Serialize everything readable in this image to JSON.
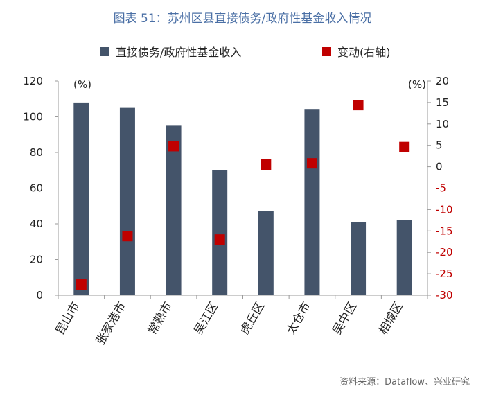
{
  "chart_data": {
    "type": "bar",
    "title": "图表 51：苏州区县直接债务/政府性基金收入情况",
    "categories": [
      "昆山市",
      "张家港市",
      "常熟市",
      "吴江区",
      "虎丘区",
      "太仓市",
      "吴中区",
      "相城区"
    ],
    "series": [
      {
        "name": "直接债务/政府性基金收入",
        "type": "bar",
        "axis": "left",
        "color": "#44546a",
        "values": [
          108,
          105,
          95,
          70,
          47,
          104,
          41,
          42
        ]
      },
      {
        "name": "变动(右轴)",
        "type": "scatter",
        "axis": "right",
        "color": "#c00000",
        "values": [
          -27.5,
          -16.2,
          4.8,
          -17.0,
          0.5,
          0.8,
          14.4,
          4.6
        ]
      }
    ],
    "y_left": {
      "unit": "(%)",
      "min": 0,
      "max": 120,
      "ticks": [
        0,
        20,
        40,
        60,
        80,
        100,
        120
      ],
      "color": "#222222"
    },
    "y_right": {
      "unit": "(%)",
      "min": -30,
      "max": 20,
      "ticks": [
        -30,
        -25,
        -20,
        -15,
        -10,
        -5,
        0,
        5,
        10,
        15,
        20
      ],
      "color": "#c00000"
    },
    "grid": false,
    "legend_position": "top"
  },
  "source_note": "资料来源：Dataflow、兴业研究"
}
